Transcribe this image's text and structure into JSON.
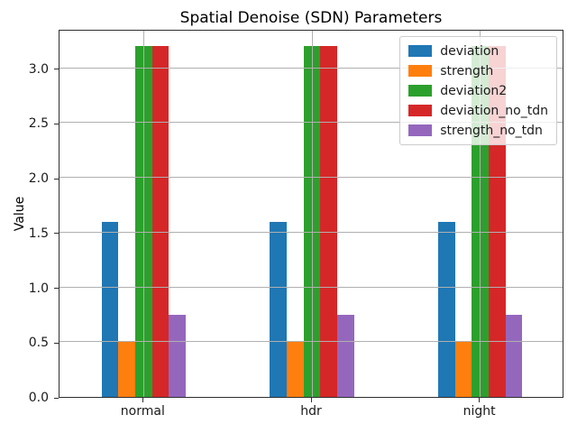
{
  "figure": {
    "title": "Spatial Denoise (SDN) Parameters",
    "ylabel": "Value"
  },
  "chart_data": {
    "type": "bar",
    "title": "Spatial Denoise (SDN) Parameters",
    "xlabel": "",
    "ylabel": "Value",
    "categories": [
      "normal",
      "hdr",
      "night"
    ],
    "series": [
      {
        "name": "deviation",
        "color": "#1f77b4",
        "values": [
          1.6,
          1.6,
          1.6
        ]
      },
      {
        "name": "strength",
        "color": "#ff7f0e",
        "values": [
          0.5,
          0.5,
          0.5
        ]
      },
      {
        "name": "deviation2",
        "color": "#2ca02c",
        "values": [
          3.2,
          3.2,
          3.2
        ]
      },
      {
        "name": "deviation_no_tdn",
        "color": "#d62728",
        "values": [
          3.2,
          3.2,
          3.2
        ]
      },
      {
        "name": "strength_no_tdn",
        "color": "#9467bd",
        "values": [
          0.75,
          0.75,
          0.75
        ]
      }
    ],
    "ylim": [
      0,
      3.36
    ],
    "yticks": [
      0.0,
      0.5,
      1.0,
      1.5,
      2.0,
      2.5,
      3.0
    ],
    "grid": true,
    "grid_color": "#b0b0b0",
    "legend_position": "upper right",
    "bar_width": 0.1
  }
}
